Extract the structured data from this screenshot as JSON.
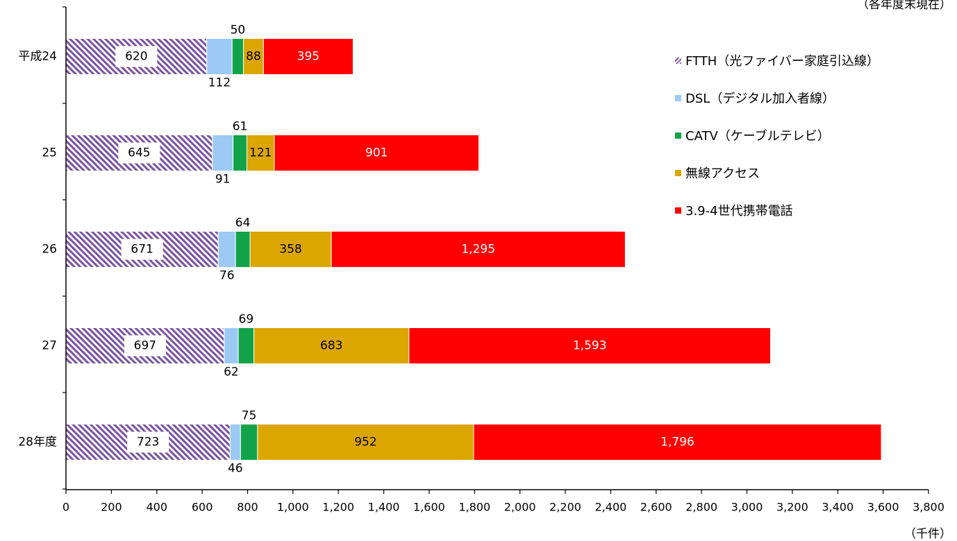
{
  "notes": {
    "as_of": "（各年度末現在）",
    "unit": "（千件）"
  },
  "chart_data": {
    "type": "bar",
    "orientation": "horizontal",
    "stacked": true,
    "categories": [
      "平成24",
      "25",
      "26",
      "27",
      "28年度"
    ],
    "series": [
      {
        "name": "FTTH（光ファイバー家庭引込線）",
        "color": "#7b55a0",
        "pattern": "diagonal-hatch",
        "values": [
          620,
          645,
          671,
          697,
          723
        ]
      },
      {
        "name": "DSL（デジタル加入者線）",
        "color": "#9dcaf5",
        "values": [
          112,
          91,
          76,
          62,
          46
        ]
      },
      {
        "name": "CATV（ケーブルテレビ）",
        "color": "#12a34a",
        "values": [
          50,
          61,
          64,
          69,
          75
        ]
      },
      {
        "name": "無線アクセス",
        "color": "#dca600",
        "values": [
          88,
          121,
          358,
          683,
          952
        ]
      },
      {
        "name": "3.9-4世代携帯電話",
        "color": "#ff0000",
        "values": [
          395,
          901,
          1295,
          1593,
          1796
        ]
      }
    ],
    "value_labels": [
      [
        "620",
        "112",
        "50",
        "88",
        "395"
      ],
      [
        "645",
        "91",
        "61",
        "121",
        "901"
      ],
      [
        "671",
        "76",
        "64",
        "358",
        "1,295"
      ],
      [
        "697",
        "62",
        "69",
        "683",
        "1,593"
      ],
      [
        "723",
        "46",
        "75",
        "952",
        "1,796"
      ]
    ],
    "xlim": [
      0,
      3800
    ],
    "x_ticks": [
      0,
      200,
      400,
      600,
      800,
      1000,
      1200,
      1400,
      1600,
      1800,
      2000,
      2200,
      2400,
      2600,
      2800,
      3000,
      3200,
      3400,
      3600,
      3800
    ],
    "x_tick_labels": [
      "0",
      "200",
      "400",
      "600",
      "800",
      "1,000",
      "1,200",
      "1,400",
      "1,600",
      "1,800",
      "2,000",
      "2,200",
      "2,400",
      "2,600",
      "2,800",
      "3,000",
      "3,200",
      "3,400",
      "3,600",
      "3,800"
    ],
    "grid": false,
    "legend_position": "top-right"
  }
}
